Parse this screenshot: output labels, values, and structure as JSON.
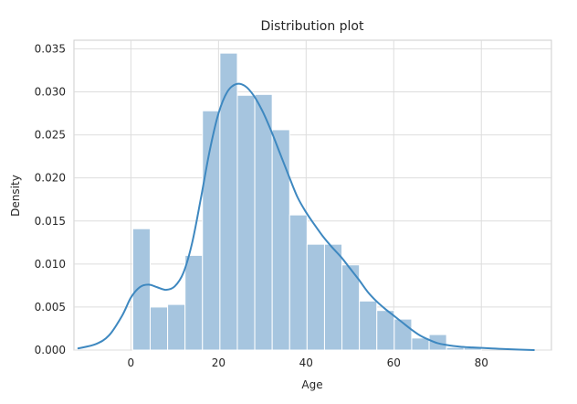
{
  "chart_data": {
    "type": "bar",
    "title": "Distribution plot",
    "xlabel": "Age",
    "ylabel": "Density",
    "xlim": [
      -13,
      96
    ],
    "ylim": [
      0,
      0.036
    ],
    "x_ticks": [
      0,
      20,
      40,
      60,
      80
    ],
    "x_tick_labels": [
      "0",
      "20",
      "40",
      "60",
      "80"
    ],
    "y_ticks": [
      0.0,
      0.005,
      0.01,
      0.015,
      0.02,
      0.025,
      0.03,
      0.035
    ],
    "y_tick_labels": [
      "0.000",
      "0.005",
      "0.010",
      "0.015",
      "0.020",
      "0.025",
      "0.030",
      "0.035"
    ],
    "grid": true,
    "background_color": "#ffffff",
    "grid_color": "#dddddd",
    "histogram": {
      "color": "#a6c5df",
      "edge_color": "#ffffff",
      "bin_edges": [
        0.42,
        4.4,
        8.38,
        12.36,
        16.34,
        20.32,
        24.3,
        28.28,
        32.26,
        36.24,
        40.22,
        44.2,
        48.18,
        52.16,
        56.14,
        60.12,
        64.1,
        68.08,
        72.06,
        76.04,
        80.02
      ],
      "densities": [
        0.0141,
        0.005,
        0.0053,
        0.011,
        0.0278,
        0.0345,
        0.0296,
        0.0297,
        0.0256,
        0.0157,
        0.0123,
        0.0123,
        0.0099,
        0.0057,
        0.0046,
        0.0036,
        0.0014,
        0.0018,
        0.0003,
        0.0003
      ]
    },
    "kde": {
      "color": "#3e88c0",
      "x": [
        -12,
        -8,
        -5,
        -2,
        0,
        2,
        4,
        6,
        8,
        10,
        12,
        14,
        16,
        18,
        20,
        22,
        24,
        26,
        28,
        30,
        32,
        34,
        36,
        38,
        40,
        42,
        44,
        46,
        48,
        50,
        52,
        54,
        56,
        58,
        60,
        62,
        64,
        66,
        68,
        70,
        72,
        75,
        78,
        82,
        86,
        92
      ],
      "y": [
        0.0002,
        0.0007,
        0.0017,
        0.004,
        0.0061,
        0.0073,
        0.0076,
        0.0073,
        0.007,
        0.0074,
        0.009,
        0.0125,
        0.0177,
        0.0232,
        0.0275,
        0.03,
        0.0309,
        0.0307,
        0.0296,
        0.0278,
        0.0255,
        0.0229,
        0.0203,
        0.0178,
        0.016,
        0.0145,
        0.0131,
        0.0119,
        0.0108,
        0.0095,
        0.0082,
        0.0068,
        0.0057,
        0.0048,
        0.004,
        0.0032,
        0.0024,
        0.0017,
        0.0012,
        0.0008,
        0.0006,
        0.0004,
        0.0003,
        0.0002,
        0.0001,
        0.0
      ]
    }
  }
}
